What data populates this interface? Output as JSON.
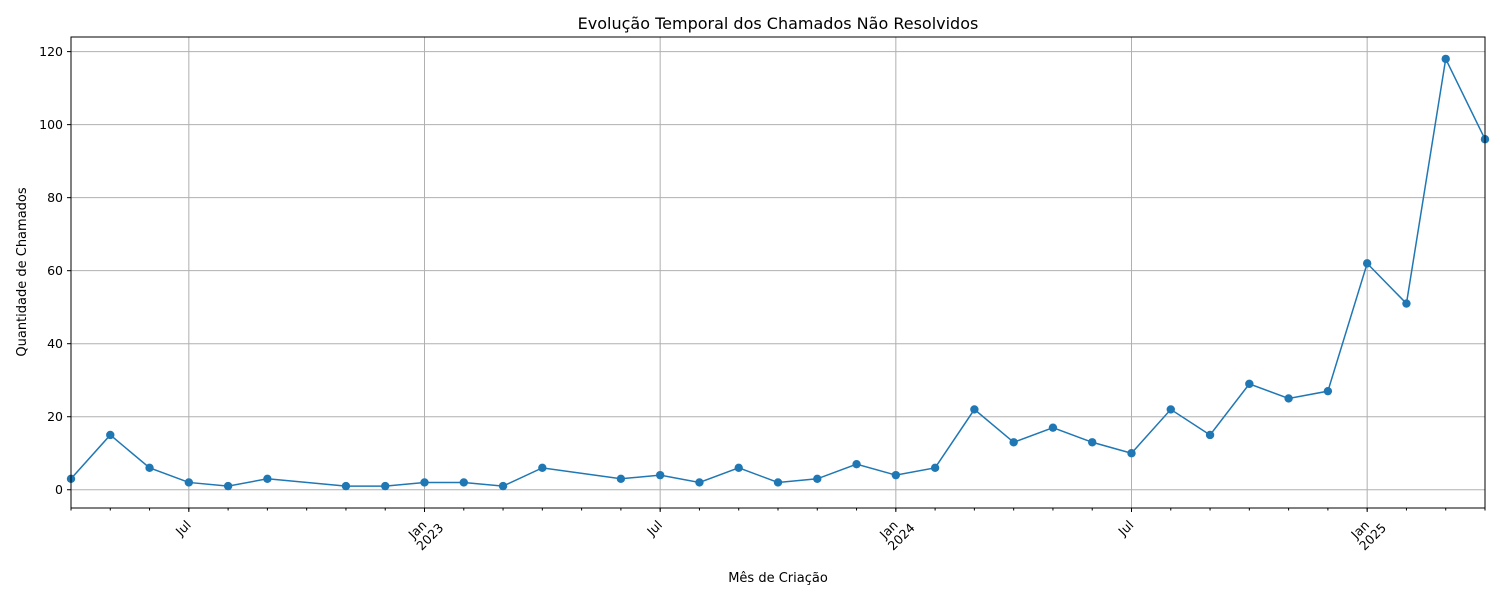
{
  "chart_data": {
    "type": "line",
    "title": "Evolução Temporal dos Chamados Não Resolvidos",
    "xlabel": "Mês de Criação",
    "ylabel": "Quantidade de Chamados",
    "ylim": [
      -5,
      124
    ],
    "xlim": [
      "2022-04",
      "2025-04"
    ],
    "grid": true,
    "marker": "circle",
    "color": "#1f77b4",
    "y_ticks": [
      0,
      20,
      40,
      60,
      80,
      100,
      120
    ],
    "x_ticks": [
      {
        "date": "2022-07",
        "label": "Jul",
        "year": ""
      },
      {
        "date": "2023-01",
        "label": "Jan",
        "year": "2023"
      },
      {
        "date": "2023-07",
        "label": "Jul",
        "year": ""
      },
      {
        "date": "2024-01",
        "label": "Jan",
        "year": "2024"
      },
      {
        "date": "2024-07",
        "label": "Jul",
        "year": ""
      },
      {
        "date": "2025-01",
        "label": "Jan",
        "year": "2025"
      }
    ],
    "series": [
      {
        "points": [
          {
            "x": "2022-04",
            "y": 3
          },
          {
            "x": "2022-05",
            "y": 15
          },
          {
            "x": "2022-06",
            "y": 6
          },
          {
            "x": "2022-07",
            "y": 2
          },
          {
            "x": "2022-08",
            "y": 1
          },
          {
            "x": "2022-09",
            "y": 3
          },
          {
            "x": "2022-11",
            "y": 1
          },
          {
            "x": "2022-12",
            "y": 1
          },
          {
            "x": "2023-01",
            "y": 2
          },
          {
            "x": "2023-02",
            "y": 2
          },
          {
            "x": "2023-03",
            "y": 1
          },
          {
            "x": "2023-04",
            "y": 6
          },
          {
            "x": "2023-06",
            "y": 3
          },
          {
            "x": "2023-07",
            "y": 4
          },
          {
            "x": "2023-08",
            "y": 2
          },
          {
            "x": "2023-09",
            "y": 6
          },
          {
            "x": "2023-10",
            "y": 2
          },
          {
            "x": "2023-11",
            "y": 3
          },
          {
            "x": "2023-12",
            "y": 7
          },
          {
            "x": "2024-01",
            "y": 4
          },
          {
            "x": "2024-02",
            "y": 6
          },
          {
            "x": "2024-03",
            "y": 22
          },
          {
            "x": "2024-04",
            "y": 13
          },
          {
            "x": "2024-05",
            "y": 17
          },
          {
            "x": "2024-06",
            "y": 13
          },
          {
            "x": "2024-07",
            "y": 10
          },
          {
            "x": "2024-08",
            "y": 22
          },
          {
            "x": "2024-09",
            "y": 15
          },
          {
            "x": "2024-10",
            "y": 29
          },
          {
            "x": "2024-11",
            "y": 25
          },
          {
            "x": "2024-12",
            "y": 27
          },
          {
            "x": "2025-01",
            "y": 62
          },
          {
            "x": "2025-02",
            "y": 51
          },
          {
            "x": "2025-03",
            "y": 118
          },
          {
            "x": "2025-04",
            "y": 96
          }
        ]
      }
    ]
  }
}
